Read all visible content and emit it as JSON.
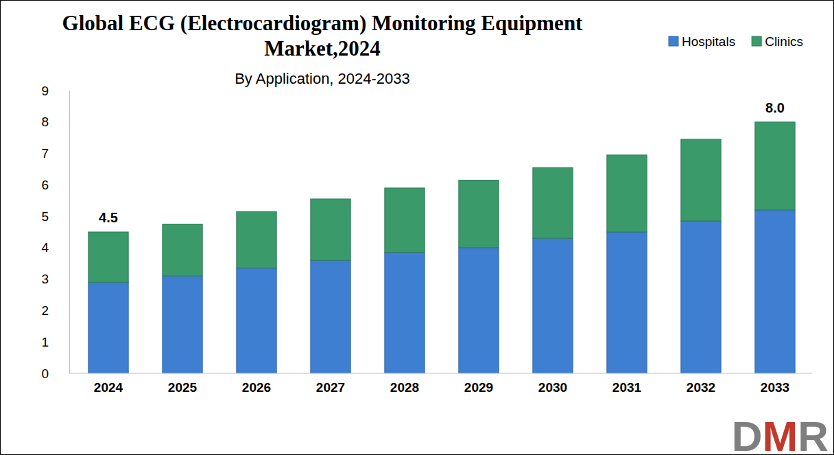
{
  "chart_data": {
    "type": "bar",
    "stacked": true,
    "title": "Global ECG (Electrocardiogram) Monitoring Equipment Market,2024",
    "subtitle": "By Application, 2024-2033",
    "categories": [
      "2024",
      "2025",
      "2026",
      "2027",
      "2028",
      "2029",
      "2030",
      "2031",
      "2032",
      "2033"
    ],
    "series": [
      {
        "name": "Hospitals",
        "color": "#3f7fd2",
        "values": [
          2.9,
          3.1,
          3.35,
          3.6,
          3.85,
          4.0,
          4.3,
          4.5,
          4.85,
          5.2
        ]
      },
      {
        "name": "Clinics",
        "color": "#3a9a6a",
        "values": [
          1.6,
          1.65,
          1.8,
          1.95,
          2.05,
          2.15,
          2.25,
          2.45,
          2.6,
          2.8
        ]
      }
    ],
    "ylim": [
      0,
      9
    ],
    "yticks": [
      0,
      1,
      2,
      3,
      4,
      5,
      6,
      7,
      8,
      9
    ],
    "grid": false,
    "legend": "top-right",
    "annotations": [
      {
        "category": "2024",
        "value": 4.5,
        "label": "4.5"
      },
      {
        "category": "2033",
        "value": 8.0,
        "label": "8.0"
      }
    ],
    "logo": "DMR"
  }
}
